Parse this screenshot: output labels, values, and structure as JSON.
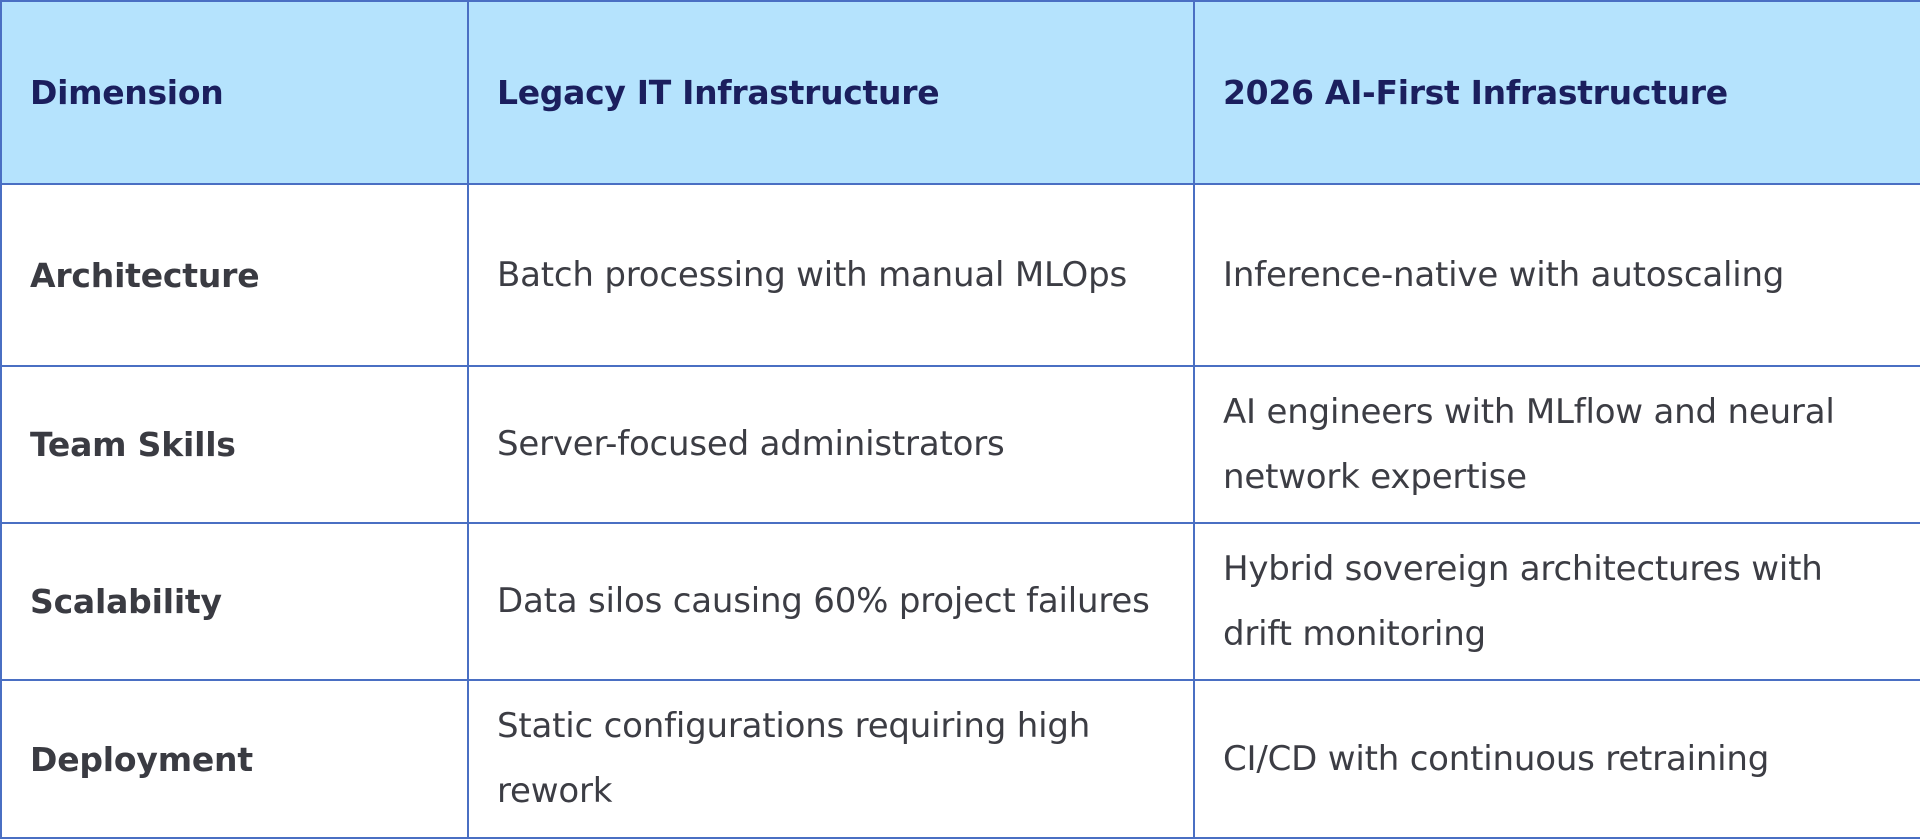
{
  "table": {
    "headers": {
      "dimension": "Dimension",
      "legacy": "Legacy IT Infrastructure",
      "ai_first": "2026 AI-First Infrastructure"
    },
    "rows": [
      {
        "dimension": "Architecture",
        "legacy": "Batch processing with manual MLOps",
        "ai_first": "Inference-native with autoscaling"
      },
      {
        "dimension": "Team Skills",
        "legacy": "Server-focused administrators",
        "ai_first": "AI engineers with MLflow and neural network expertise"
      },
      {
        "dimension": "Scalability",
        "legacy": "Data silos causing 60% project failures",
        "ai_first": "Hybrid sovereign architectures with drift monitoring"
      },
      {
        "dimension": "Deployment",
        "legacy": "Static configurations requiring high rework",
        "ai_first": "CI/CD with continuous retraining"
      }
    ]
  },
  "colors": {
    "header_background": "#b5e3fd",
    "header_text": "#1b1f5e",
    "border": "#4a6fc3",
    "body_text": "#3c3d44"
  }
}
